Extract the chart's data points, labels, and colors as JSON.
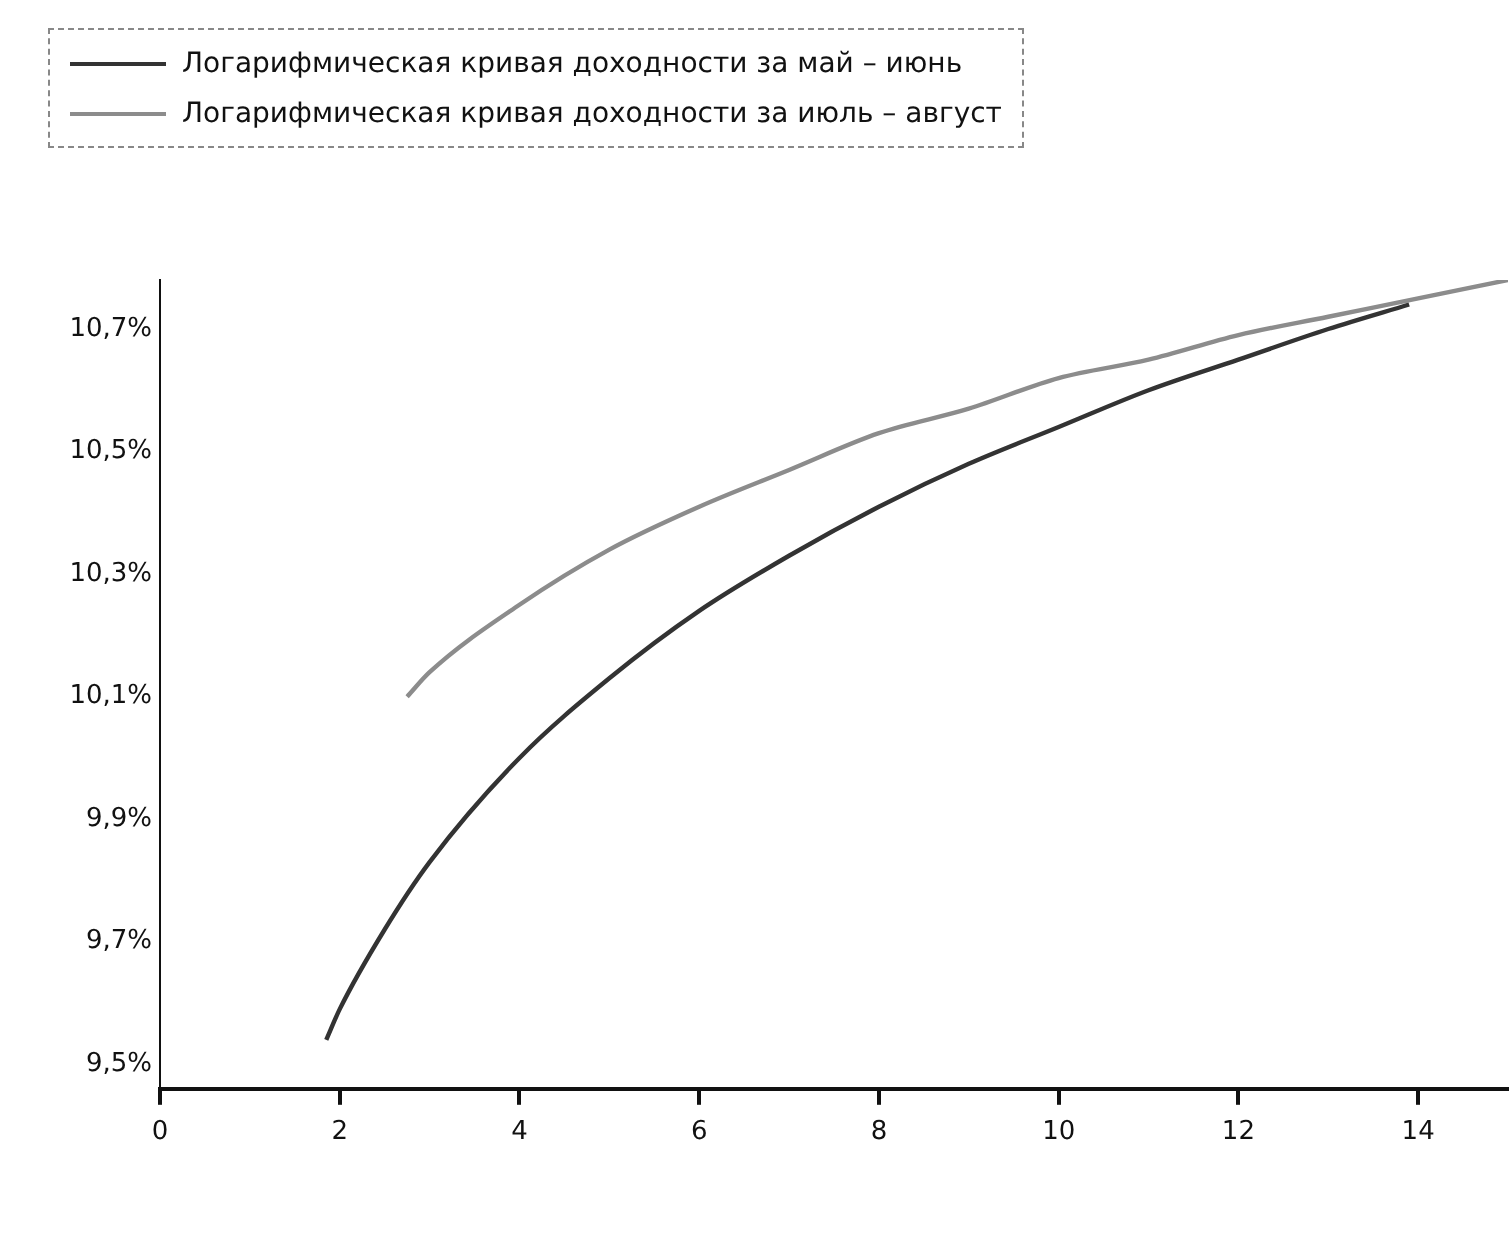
{
  "chart_data": {
    "type": "line",
    "legend": "top left",
    "marker": "none",
    "grid": false,
    "series": [
      {
        "name": "Логарифмическая кривая доходности за май – июнь",
        "color": "#333333",
        "x": [
          1.85,
          2,
          2.5,
          3,
          4,
          5,
          6,
          7,
          8,
          9,
          10,
          11,
          12,
          13,
          13.9
        ],
        "values": [
          9.54,
          9.59,
          9.72,
          9.83,
          10.0,
          10.13,
          10.24,
          10.33,
          10.41,
          10.48,
          10.54,
          10.6,
          10.65,
          10.7,
          10.74
        ]
      },
      {
        "name": "Логарифмическая кривая доходности за июль – август",
        "color": "#8c8c8c",
        "x": [
          2.75,
          3,
          4,
          5,
          6,
          7,
          8,
          9,
          10,
          11,
          12,
          13,
          14,
          15
        ],
        "values": [
          10.1,
          10.14,
          10.25,
          10.34,
          10.41,
          10.47,
          10.53,
          10.57,
          10.62,
          10.65,
          10.69,
          10.72,
          10.75,
          10.78
        ]
      }
    ],
    "xlim": [
      0,
      15
    ],
    "xticks": [
      0,
      2,
      4,
      6,
      8,
      10,
      12,
      14
    ],
    "ylim": [
      9.46,
      10.78
    ],
    "yticks": [
      {
        "value": 9.5,
        "label": "9,5%"
      },
      {
        "value": 9.7,
        "label": "9,7%"
      },
      {
        "value": 9.9,
        "label": "9,9%"
      },
      {
        "value": 10.1,
        "label": "10,1%"
      },
      {
        "value": 10.3,
        "label": "10,3%"
      },
      {
        "value": 10.5,
        "label": "10,5%"
      },
      {
        "value": 10.7,
        "label": "10,7%"
      }
    ]
  }
}
